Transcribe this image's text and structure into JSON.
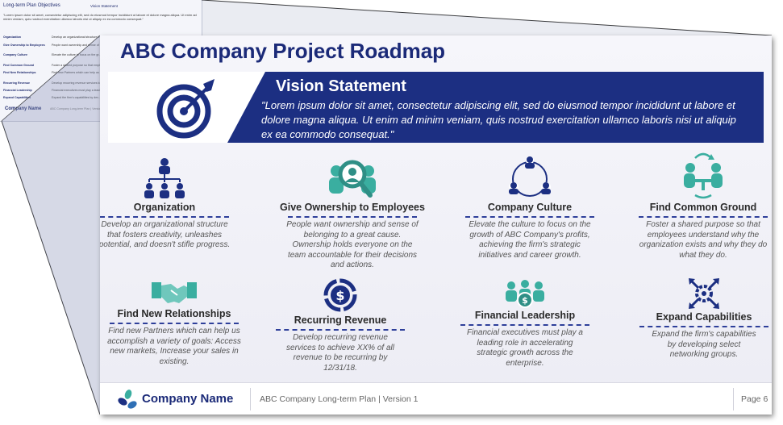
{
  "thumbnail": {
    "heading": "Long-term Plan Objectives",
    "vision_label": "Vision Statement",
    "quote": "\"Lorem ipsum dolor sit amet, consectetur adipiscing elit, sed do eiusmod tempor incididunt ut labore et dolore magna aliqua. Ut enim ad minim veniam, quis nostrud exercitation ullamco laboris nisi ut aliquip ex ea commodo consequat.\"",
    "rows": [
      {
        "key": "Organization",
        "text": "Develop an organizational structure th..."
      },
      {
        "key": "Give Ownership to Employees",
        "text": "People want ownership and sense of b..."
      },
      {
        "key": "Company Culture",
        "text": "Elevate the culture to focus on the gr..."
      },
      {
        "key": "Find Common Ground",
        "text": "Foster a shared purpose so that emplo..."
      },
      {
        "key": "Find New Relationships",
        "text": "Find new Partners which can help us a..."
      },
      {
        "key": "Recurring Revenue",
        "text": "Develop recurring revenue services to..."
      },
      {
        "key": "Financial Leadership",
        "text": "Financial executives must play a lead..."
      },
      {
        "key": "Expand Capabilities",
        "text": "Expand the firm's capabilities by dev..."
      }
    ],
    "logo": "Company Name",
    "footer": "ABC Company Long-term Plan | Version 1"
  },
  "slide": {
    "title": "ABC Company Project Roadmap",
    "vision_title": "Vision Statement",
    "vision_text": "\"Lorem ipsum dolor sit amet, consectetur adipiscing elit, sed do eiusmod tempor incididunt ut labore et dolore magna aliqua. Ut enim ad minim veniam, quis nostrud exercitation ullamco laboris nisi ut aliquip ex ea commodo consequat.\"",
    "items": [
      {
        "icon": "org-chart-icon",
        "label": "Organization",
        "desc": "Develop an organizational structure that fosters creativity, unleashes potential, and doesn't stifle progress."
      },
      {
        "icon": "people-magnifier-icon",
        "label": "Give Ownership to Employees",
        "desc": "People want ownership and sense of belonging to a great cause. Ownership holds everyone on the team accountable for their decisions and actions."
      },
      {
        "icon": "team-cycle-icon",
        "label": "Company Culture",
        "desc": "Elevate the culture to focus on the growth of ABC Company's profits, achieving the firm's strategic initiatives and career growth."
      },
      {
        "icon": "meeting-icon",
        "label": "Find Common Ground",
        "desc": "Foster a shared purpose so that employees understand why the organization exists and why they do what they do."
      },
      {
        "icon": "handshake-icon",
        "label": "Find New Relationships",
        "desc": "Find new Partners which can help us accomplish a variety of goals: Access new markets, Increase your sales in existing."
      },
      {
        "icon": "dollar-cycle-icon",
        "label": "Recurring Revenue",
        "desc": "Develop recurring revenue services to achieve XX% of all revenue to be recurring by 12/31/18."
      },
      {
        "icon": "finance-team-icon",
        "label": "Financial Leadership",
        "desc": "Financial executives must play a leading role in accelerating strategic growth across the enterprise."
      },
      {
        "icon": "network-gear-icon",
        "label": "Expand Capabilities",
        "desc": "Expand the firm's capabilities by developing select networking groups."
      }
    ],
    "footer": {
      "company": "Company Name",
      "plan": "ABC Company Long-term Plan |  Version 1",
      "page": "Page 6"
    }
  },
  "colors": {
    "navy": "#1c2f82",
    "teal": "#3aaea0",
    "text": "#555555"
  }
}
